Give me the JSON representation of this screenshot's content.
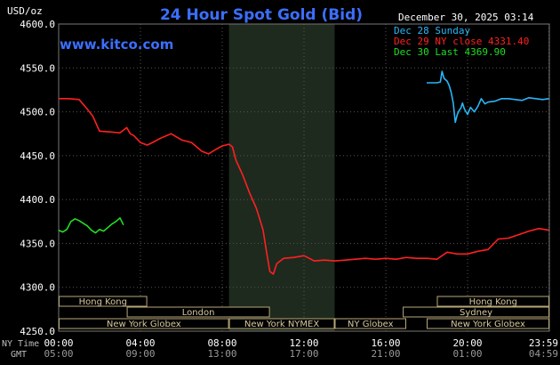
{
  "chart_data": {
    "type": "line",
    "title": "24 Hour Spot Gold (Bid)",
    "units_label": "USD/oz",
    "timestamp": "December 30, 2025 03:14",
    "watermark": "www.kitco.com",
    "ylim": [
      4250,
      4600
    ],
    "y_ticks": [
      "4600.0",
      "4550.0",
      "4500.0",
      "4450.0",
      "4400.0",
      "4350.0",
      "4300.0",
      "4250.0"
    ],
    "y_tick_values": [
      4600,
      4550,
      4500,
      4450,
      4400,
      4350,
      4300,
      4250
    ],
    "x_unit": "hours",
    "x_range": [
      0,
      24
    ],
    "x_ticks_ny": [
      "00:00",
      "04:00",
      "08:00",
      "12:00",
      "16:00",
      "20:00",
      "23:59"
    ],
    "x_ticks_gmt": [
      "05:00",
      "09:00",
      "13:00",
      "17:00",
      "21:00",
      "01:00",
      "04:59"
    ],
    "x_tick_hours": [
      0,
      4,
      8,
      12,
      16,
      20,
      23.98
    ],
    "tz_labels": {
      "ny": "NY Time",
      "gmt": "GMT"
    },
    "shaded_session": {
      "label": "New York NYMEX",
      "start_hour": 8.33,
      "end_hour": 13.5
    },
    "sessions": [
      {
        "row": 1,
        "label": "Hong Kong",
        "start_hour": 0,
        "end_hour": 4.33
      },
      {
        "row": 1,
        "label": "Hong Kong",
        "start_hour": 18.5,
        "end_hour": 24
      },
      {
        "row": 2,
        "label": "London",
        "start_hour": 3.33,
        "end_hour": 10.33
      },
      {
        "row": 2,
        "label": "Sydney",
        "start_hour": 16.83,
        "end_hour": 24
      },
      {
        "row": 3,
        "label": "New York Globex",
        "start_hour": 0,
        "end_hour": 8.33
      },
      {
        "row": 3,
        "label": "New York NYMEX",
        "start_hour": 8.33,
        "end_hour": 13.5
      },
      {
        "row": 3,
        "label": "NY Globex",
        "start_hour": 13.5,
        "end_hour": 17
      },
      {
        "row": 3,
        "label": "New York Globex",
        "start_hour": 18,
        "end_hour": 24
      }
    ],
    "legend": [
      {
        "text": "Dec 28 Sunday",
        "color": "#29b6f6"
      },
      {
        "text": "Dec 29 NY close 4331.40",
        "color": "#ff2020"
      },
      {
        "text": "Dec 30 Last 4369.90",
        "color": "#22dd22"
      }
    ],
    "series": [
      {
        "name": "Dec 28 Sunday",
        "color": "#29b6f6",
        "x": [
          18,
          18.5,
          18.67,
          18.75,
          18.85,
          19,
          19.1,
          19.2,
          19.3,
          19.4,
          19.5,
          19.6,
          19.67,
          19.75,
          19.85,
          20,
          20.15,
          20.33,
          20.5,
          20.67,
          20.85,
          21,
          21.33,
          21.67,
          22,
          22.33,
          22.67,
          23,
          23.33,
          23.67,
          23.98
        ],
        "values": [
          4533,
          4533,
          4534,
          4546,
          4538,
          4535,
          4530,
          4522,
          4510,
          4488,
          4497,
          4502,
          4504,
          4510,
          4503,
          4497,
          4505,
          4500,
          4506,
          4515,
          4509,
          4511,
          4512,
          4515,
          4515,
          4514,
          4513,
          4516,
          4515,
          4514,
          4515
        ]
      },
      {
        "name": "Dec 29 NY close 4331.40",
        "color": "#ff2020",
        "x": [
          0,
          0.5,
          1,
          1.33,
          1.67,
          2,
          2.5,
          3,
          3.33,
          3.5,
          3.67,
          4,
          4.33,
          4.67,
          5,
          5.5,
          6,
          6.5,
          7,
          7.33,
          7.67,
          8,
          8.33,
          8.5,
          8.67,
          9,
          9.33,
          9.67,
          9.83,
          10,
          10.17,
          10.33,
          10.5,
          10.67,
          11,
          11.5,
          12,
          12.5,
          13,
          13.5,
          14,
          14.5,
          15,
          15.5,
          16,
          16.5,
          17,
          17.5,
          18,
          18.5,
          19,
          19.5,
          20,
          20.5,
          21,
          21.5,
          22,
          22.5,
          23,
          23.5,
          23.98
        ],
        "values": [
          4515,
          4515,
          4514,
          4505,
          4495,
          4478,
          4477,
          4476,
          4482,
          4475,
          4473,
          4465,
          4462,
          4466,
          4470,
          4475,
          4468,
          4465,
          4455,
          4452,
          4457,
          4461,
          4463,
          4460,
          4445,
          4428,
          4408,
          4390,
          4378,
          4365,
          4340,
          4318,
          4315,
          4327,
          4333,
          4334,
          4336,
          4330,
          4331,
          4330,
          4331,
          4332,
          4333,
          4332,
          4333,
          4332,
          4334,
          4333,
          4333,
          4332,
          4340,
          4338,
          4338,
          4341,
          4343,
          4355,
          4356,
          4360,
          4364,
          4367,
          4365
        ]
      },
      {
        "name": "Dec 30 Last 4369.90",
        "color": "#22dd22",
        "x": [
          0,
          0.2,
          0.4,
          0.6,
          0.8,
          1.0,
          1.2,
          1.4,
          1.6,
          1.8,
          2.0,
          2.2,
          2.4,
          2.6,
          2.8,
          3.0,
          3.17
        ],
        "values": [
          4365,
          4363,
          4366,
          4375,
          4378,
          4376,
          4373,
          4370,
          4365,
          4362,
          4366,
          4364,
          4368,
          4372,
          4375,
          4379,
          4371
        ]
      }
    ]
  }
}
